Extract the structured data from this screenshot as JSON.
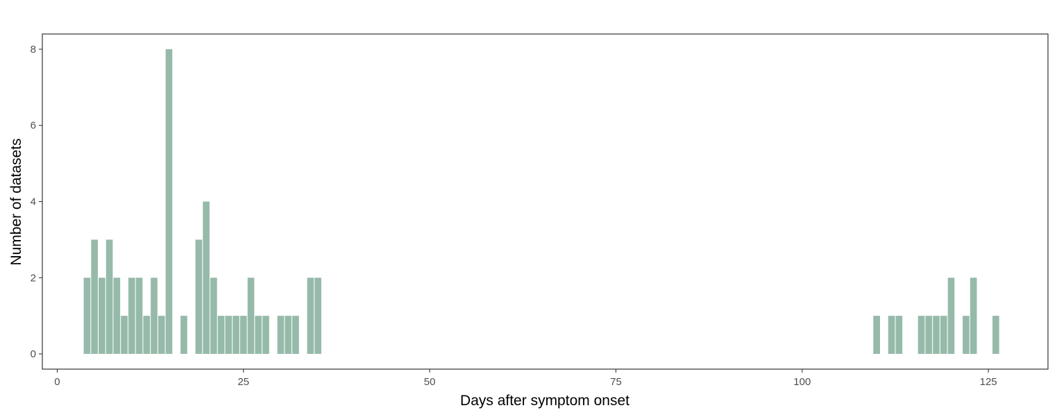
{
  "chart_data": {
    "type": "bar",
    "title": "",
    "xlabel": "Days after symptom onset",
    "ylabel": "Number of datasets",
    "x": [
      4,
      5,
      6,
      7,
      8,
      9,
      10,
      11,
      12,
      13,
      14,
      15,
      17,
      19,
      20,
      21,
      22,
      23,
      24,
      25,
      26,
      27,
      28,
      30,
      31,
      32,
      34,
      35,
      110,
      112,
      113,
      116,
      117,
      118,
      119,
      120,
      122,
      123,
      126
    ],
    "values": [
      2,
      3,
      2,
      3,
      2,
      1,
      2,
      2,
      1,
      2,
      1,
      8,
      1,
      3,
      4,
      2,
      1,
      1,
      1,
      1,
      2,
      1,
      1,
      1,
      1,
      1,
      2,
      2,
      1,
      1,
      1,
      1,
      1,
      1,
      1,
      2,
      1,
      2,
      1
    ],
    "xlim": [
      -2,
      133
    ],
    "ylim": [
      -0.4,
      8.4
    ],
    "xticks": [
      0,
      25,
      50,
      75,
      100,
      125
    ],
    "yticks": [
      0,
      2,
      4,
      6,
      8
    ],
    "grid": false,
    "legend": "none",
    "bar_color": "#96baa9",
    "axis_color": "#333333"
  }
}
